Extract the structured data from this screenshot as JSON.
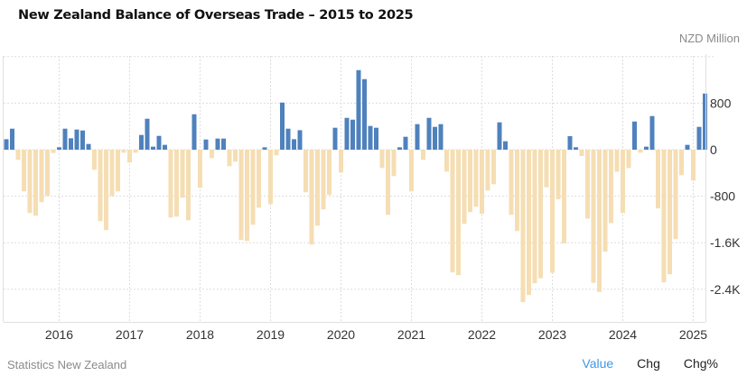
{
  "header": {
    "title": "New Zealand Balance of Overseas Trade – 2015 to 2025",
    "unit": "NZD Million"
  },
  "footer": {
    "source": "Statistics New Zealand",
    "tabs": [
      {
        "label": "Value",
        "active": true
      },
      {
        "label": "Chg",
        "active": false
      },
      {
        "label": "Chg%",
        "active": false
      }
    ]
  },
  "colors": {
    "positive": "#4f81bd",
    "negative": "#f5deb3",
    "active_tab": "#3d98e6"
  },
  "chart_data": {
    "type": "bar",
    "title": "New Zealand Balance of Overseas Trade – 2015 to 2025",
    "xlabel": "",
    "ylabel": "NZD Million",
    "ylim": [
      -2900,
      1600
    ],
    "y_ticks": [
      800,
      0,
      -800,
      -1600,
      -2400
    ],
    "y_tick_labels": [
      "800",
      "0",
      "-800",
      "-1.6K",
      "-2.4K"
    ],
    "x_tick_labels": [
      "2016",
      "2017",
      "2018",
      "2019",
      "2020",
      "2021",
      "2022",
      "2023",
      "2024",
      "2025"
    ],
    "grid": true,
    "y_axis_side": "right",
    "start_month": "2015-04",
    "end_month": "2025-03",
    "frequency": "monthly",
    "values": [
      180,
      361,
      -175,
      -717,
      -1089,
      -1135,
      -903,
      -795,
      -57,
      41,
      361,
      196,
      346,
      330,
      98,
      -346,
      -1228,
      -1383,
      -795,
      -717,
      -52,
      -222,
      -52,
      253,
      532,
      52,
      237,
      83,
      -1166,
      -1151,
      -826,
      -1213,
      609,
      -655,
      175,
      -145,
      191,
      191,
      -284,
      -206,
      -1554,
      -1569,
      -1290,
      -996,
      41,
      -934,
      -98,
      810,
      361,
      180,
      335,
      -733,
      -1631,
      -1306,
      -1027,
      -779,
      377,
      -392,
      547,
      516,
      1368,
      1213,
      408,
      377,
      -315,
      -1120,
      -454,
      41,
      222,
      -717,
      439,
      -175,
      547,
      392,
      439,
      -377,
      -2111,
      -2157,
      -1275,
      -1073,
      -981,
      -1104,
      -702,
      -594,
      470,
      145,
      -1120,
      -1399,
      -2622,
      -2498,
      -2297,
      -2210,
      -647,
      -2116,
      -853,
      -1611,
      232,
      42,
      -110,
      -1184,
      -2289,
      -2447,
      -1753,
      -1263,
      -379,
      -1089,
      -316,
      484,
      -52,
      52,
      578,
      -1011,
      -2281,
      -2142,
      -1538,
      -439,
      83,
      -532,
      392,
      965
    ]
  }
}
